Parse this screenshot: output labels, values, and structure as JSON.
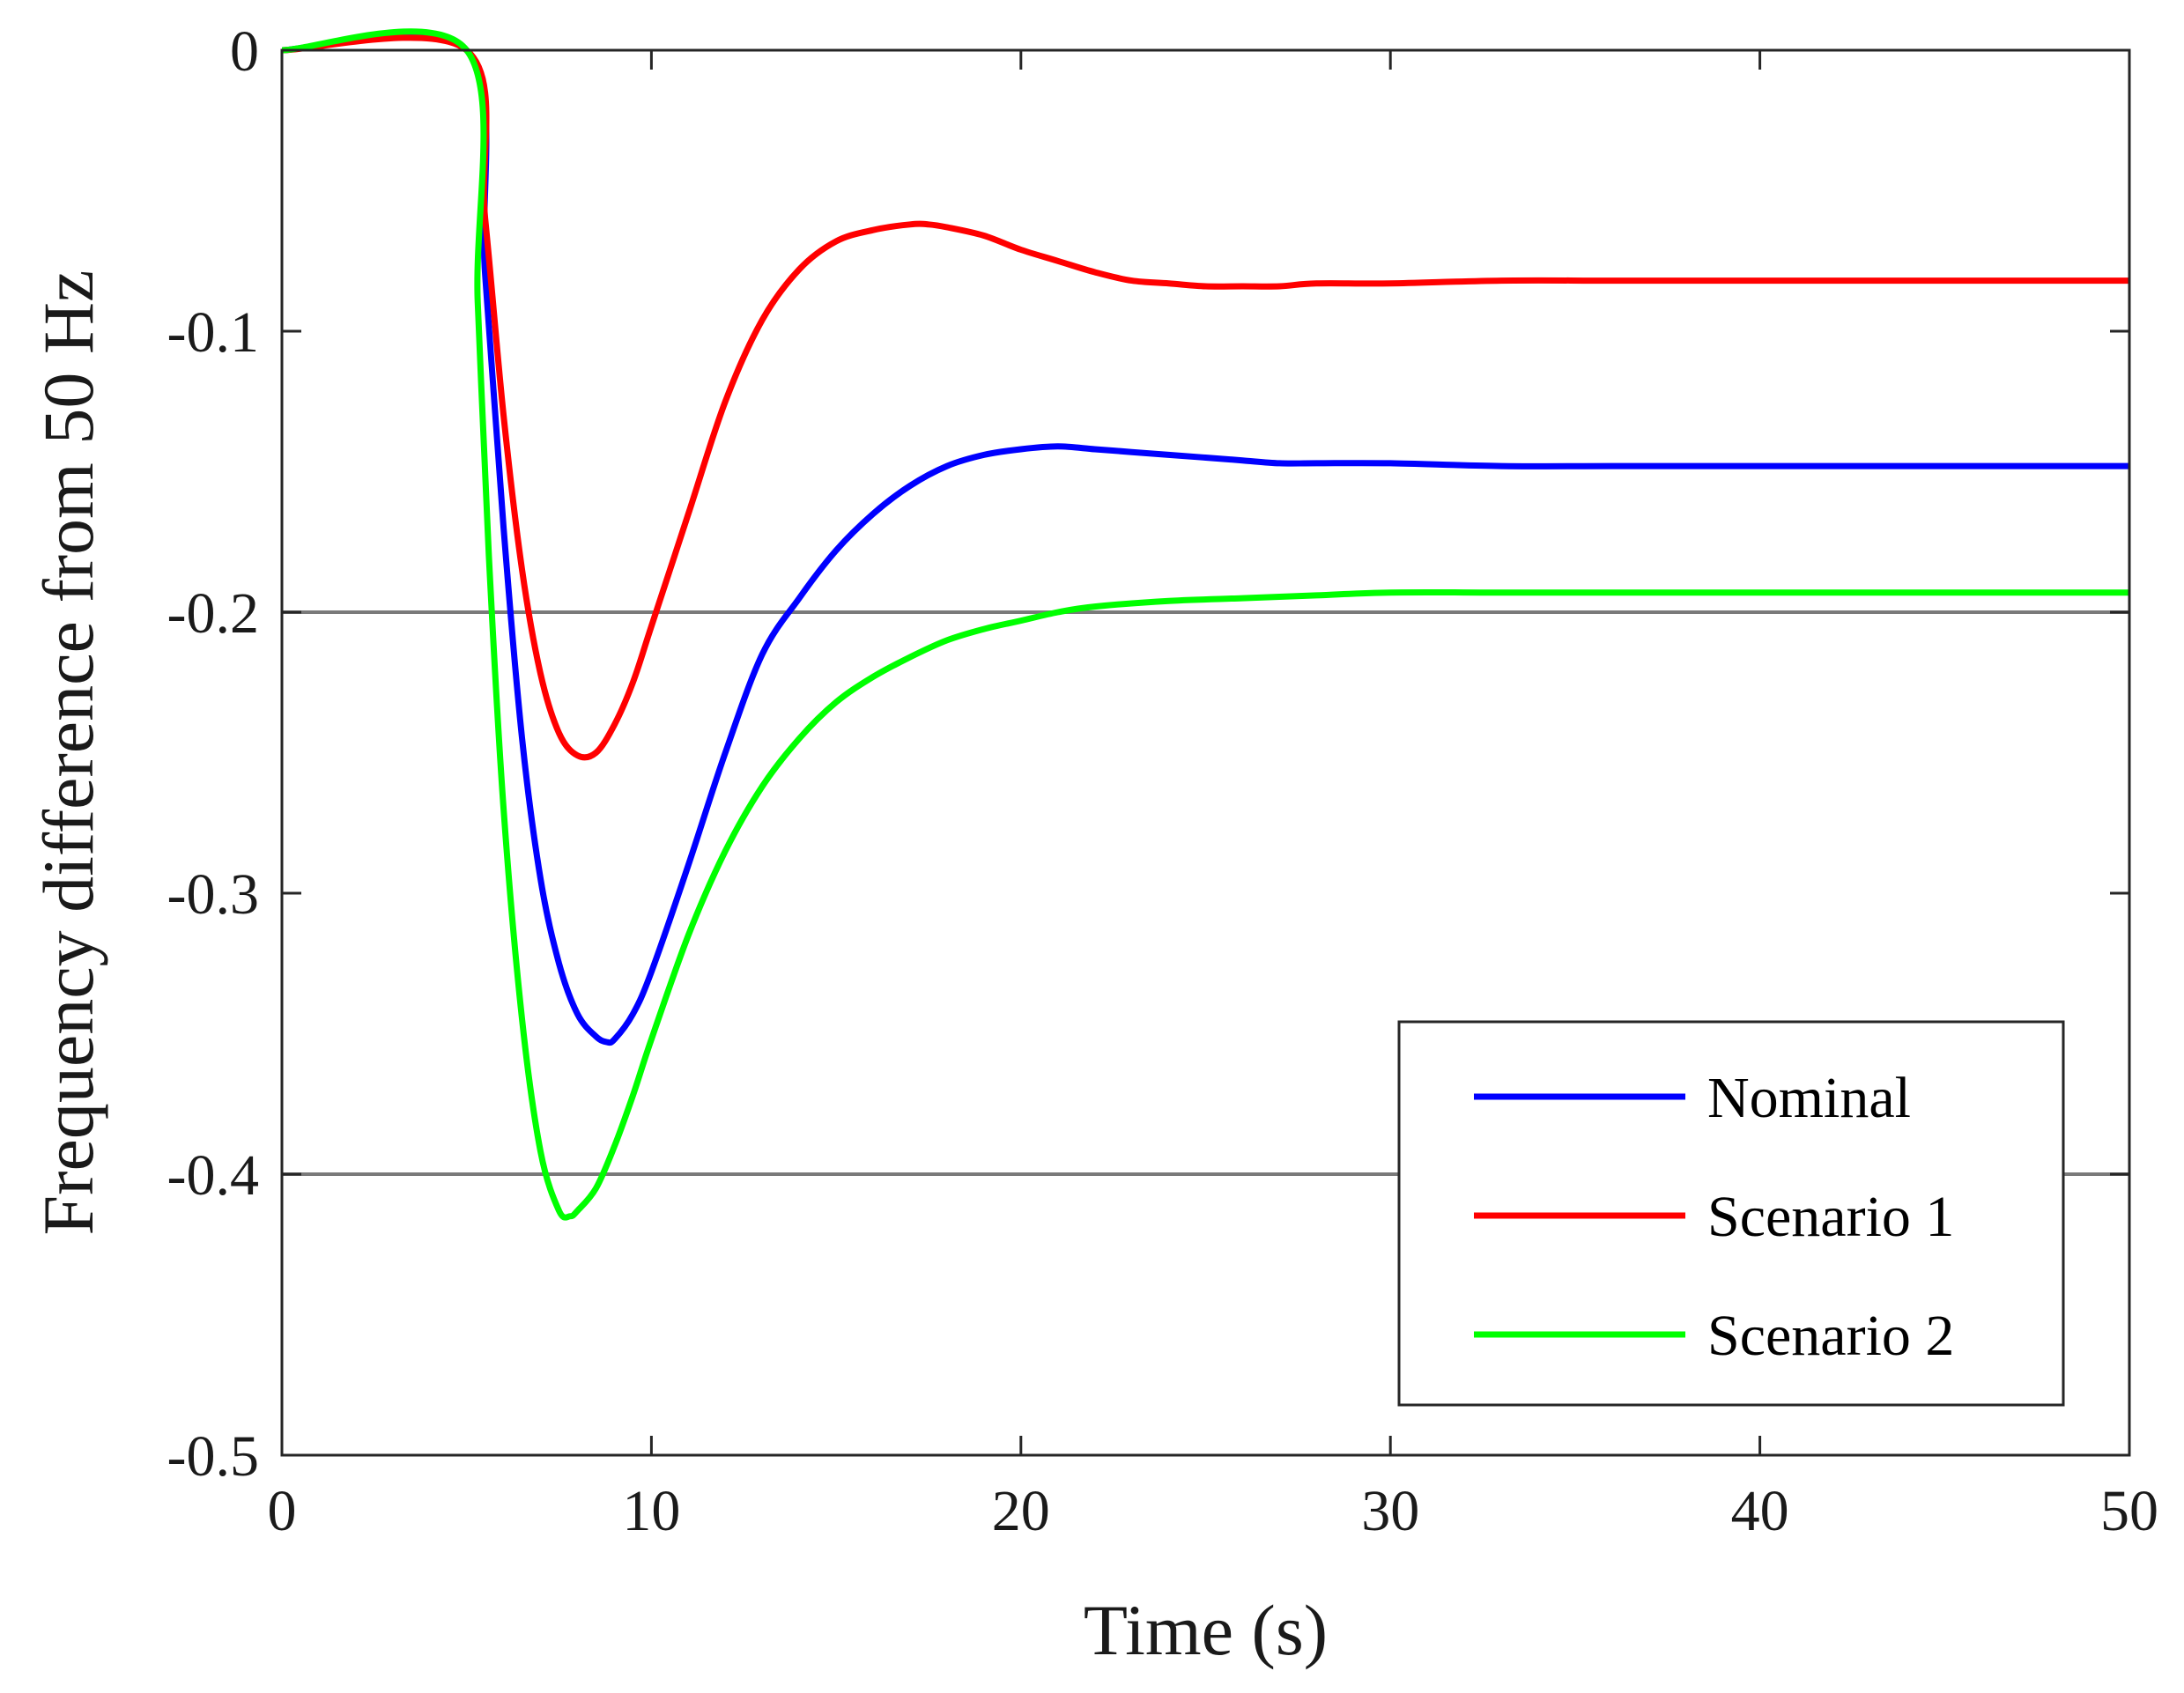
{
  "chart_data": {
    "type": "line",
    "title": "",
    "xlabel": "Time (s)",
    "ylabel": "Frequency difference from 50 Hz",
    "xlim": [
      0,
      50
    ],
    "ylim": [
      -0.5,
      0
    ],
    "xticks": [
      0,
      10,
      20,
      30,
      40,
      50
    ],
    "xtick_labels": [
      "0",
      "10",
      "20",
      "30",
      "40",
      "50"
    ],
    "yticks": [
      0,
      -0.1,
      -0.2,
      -0.3,
      -0.4,
      -0.5
    ],
    "ytick_labels": [
      "0",
      "-0.1",
      "-0.2",
      "-0.3",
      "-0.4",
      "-0.5"
    ],
    "reference_lines": [
      -0.2,
      -0.4
    ],
    "legend_position": "bottom-right",
    "series": [
      {
        "name": "Nominal",
        "color": "#0000ff",
        "x": [
          0,
          5,
          5.5,
          6,
          6.5,
          7,
          7.5,
          8,
          8.5,
          8.8,
          9,
          9.5,
          10,
          11,
          12,
          13,
          14,
          15,
          16,
          17,
          18,
          19,
          20,
          21,
          22,
          23,
          24,
          25,
          26,
          27,
          28,
          30,
          33,
          36,
          40,
          45,
          50
        ],
        "y": [
          0,
          0,
          -0.08,
          -0.17,
          -0.245,
          -0.295,
          -0.325,
          -0.343,
          -0.351,
          -0.353,
          -0.352,
          -0.343,
          -0.328,
          -0.29,
          -0.25,
          -0.215,
          -0.195,
          -0.178,
          -0.165,
          -0.155,
          -0.148,
          -0.144,
          -0.142,
          -0.141,
          -0.142,
          -0.143,
          -0.144,
          -0.145,
          -0.146,
          -0.147,
          -0.147,
          -0.147,
          -0.148,
          -0.148,
          -0.148,
          -0.148,
          -0.148
        ]
      },
      {
        "name": "Scenario 1",
        "color": "#ff0000",
        "x": [
          0,
          5,
          5.5,
          6,
          6.5,
          7,
          7.5,
          8,
          8.5,
          9,
          9.5,
          10,
          11,
          12,
          13,
          14,
          15,
          16,
          17,
          17.5,
          18,
          19,
          20,
          21,
          22,
          23,
          24,
          25,
          26,
          27,
          28,
          30,
          33,
          36,
          40,
          45,
          50
        ],
        "y": [
          0,
          0,
          -0.06,
          -0.13,
          -0.185,
          -0.222,
          -0.243,
          -0.251,
          -0.25,
          -0.24,
          -0.225,
          -0.205,
          -0.165,
          -0.125,
          -0.096,
          -0.078,
          -0.068,
          -0.064,
          -0.062,
          -0.062,
          -0.063,
          -0.066,
          -0.071,
          -0.075,
          -0.079,
          -0.082,
          -0.083,
          -0.084,
          -0.084,
          -0.084,
          -0.083,
          -0.083,
          -0.082,
          -0.082,
          -0.082,
          -0.082,
          -0.082
        ]
      },
      {
        "name": "Scenario 2",
        "color": "#00ff00",
        "x": [
          0,
          5,
          5.3,
          5.6,
          6,
          6.5,
          7,
          7.5,
          7.8,
          8,
          8.5,
          9,
          9.5,
          10,
          11,
          12,
          13,
          14,
          15,
          16,
          17,
          18,
          19,
          20,
          21,
          22,
          24,
          26,
          28,
          30,
          33,
          36,
          40,
          45,
          50
        ],
        "y": [
          0,
          0,
          -0.09,
          -0.18,
          -0.27,
          -0.345,
          -0.392,
          -0.413,
          -0.415,
          -0.413,
          -0.405,
          -0.39,
          -0.372,
          -0.352,
          -0.315,
          -0.285,
          -0.262,
          -0.245,
          -0.232,
          -0.223,
          -0.216,
          -0.21,
          -0.206,
          -0.203,
          -0.2,
          -0.198,
          -0.196,
          -0.195,
          -0.194,
          -0.193,
          -0.193,
          -0.193,
          -0.193,
          -0.193,
          -0.193
        ]
      }
    ]
  }
}
